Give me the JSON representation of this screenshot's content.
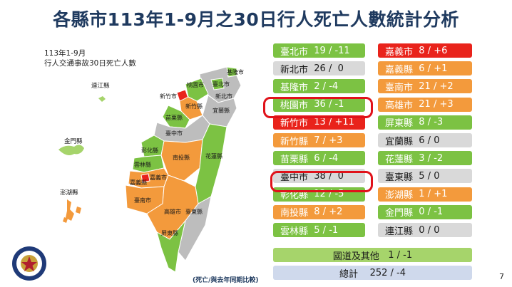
{
  "title": "各縣市113年1-9月之30日行人死亡人數統計分析",
  "map": {
    "note_line1": "113年1-9月",
    "note_line2": "行人交通事故30日死亡人數",
    "labels": {
      "lienchiang": "連江縣",
      "kinmen": "金門縣",
      "penghu": "澎湖縣",
      "keelung": "基隆市",
      "taipei": "臺北市",
      "newtaipei": "新北市",
      "taoyuan": "桃園市",
      "hsinchucity": "新竹市",
      "hsinchucounty": "新竹縣",
      "yilan": "宜蘭縣",
      "miaoli": "苗栗縣",
      "taichung": "臺中市",
      "changhua": "彰化縣",
      "nantou": "南投縣",
      "hualien": "花蓮縣",
      "yunlin": "雲林縣",
      "chiayicounty": "嘉義縣",
      "chiayicity": "嘉義市",
      "tainan": "臺南市",
      "kaohsiung": "高雄市",
      "taitung": "臺東縣",
      "pingtung": "屏東縣"
    }
  },
  "table": {
    "left": [
      {
        "city": "臺北市",
        "value": "19 / -11",
        "color": "green"
      },
      {
        "city": "新北市",
        "value": "26 /  0",
        "color": "gray"
      },
      {
        "city": "基隆市",
        "value": "2 / -4",
        "color": "green"
      },
      {
        "city": "桃園市",
        "value": "36 / -1",
        "color": "green"
      },
      {
        "city": "新竹市",
        "value": "13 / +11",
        "color": "red"
      },
      {
        "city": "新竹縣",
        "value": "7 / +3",
        "color": "orange"
      },
      {
        "city": "苗栗縣",
        "value": "6 / -4",
        "color": "green"
      },
      {
        "city": "臺中市",
        "value": "38 /  0",
        "color": "gray"
      },
      {
        "city": "彰化縣",
        "value": "12 / -5",
        "color": "green"
      },
      {
        "city": "南投縣",
        "value": "8 / +2",
        "color": "orange"
      },
      {
        "city": "雲林縣",
        "value": "5 / -1",
        "color": "green"
      }
    ],
    "right": [
      {
        "city": "嘉義市",
        "value": "8 / +6",
        "color": "red"
      },
      {
        "city": "嘉義縣",
        "value": "6 / +1",
        "color": "orange"
      },
      {
        "city": "臺南市",
        "value": "21 / +2",
        "color": "orange"
      },
      {
        "city": "高雄市",
        "value": "21 / +3",
        "color": "orange"
      },
      {
        "city": "屏東縣",
        "value": "8 / -3",
        "color": "green"
      },
      {
        "city": "宜蘭縣",
        "value": "6 / 0",
        "color": "gray"
      },
      {
        "city": "花蓮縣",
        "value": "3 / -2",
        "color": "green"
      },
      {
        "city": "臺東縣",
        "value": "5 / 0",
        "color": "gray"
      },
      {
        "city": "澎湖縣",
        "value": "1 / +1",
        "color": "orange"
      },
      {
        "city": "金門縣",
        "value": "0 / -1",
        "color": "green"
      },
      {
        "city": "連江縣",
        "value": "0 / 0",
        "color": "gray"
      }
    ],
    "national": {
      "label": "國道及其他",
      "value": "1 / -1"
    },
    "total": {
      "label": "總計",
      "value": "252 / -4"
    }
  },
  "footnote": "(死亡/與去年同期比較)",
  "page_number": "7",
  "colors": {
    "green": "#7cc243",
    "light_green": "#a6d46b",
    "gray": "#d9d9d9",
    "orange": "#f39a3c",
    "red": "#e9231b",
    "highlight": "#e0121a",
    "title": "#1f3a5f"
  }
}
